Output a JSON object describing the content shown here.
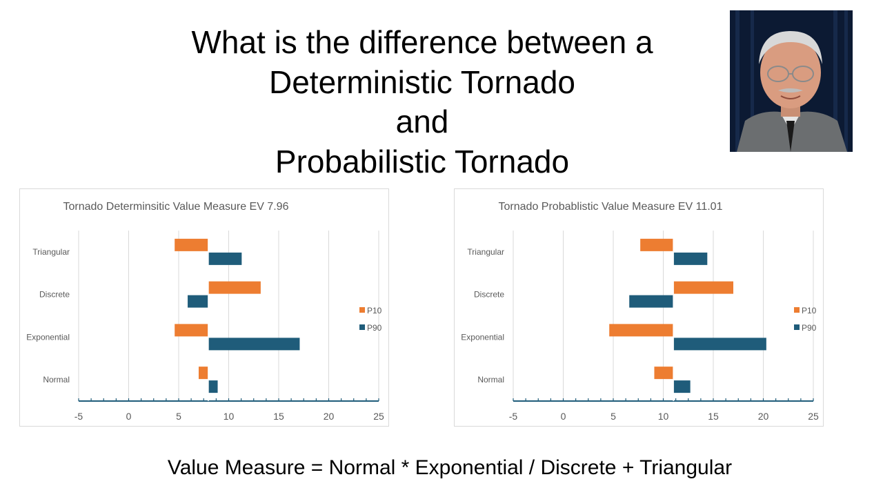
{
  "slide": {
    "title_lines": [
      "What is the difference between a",
      "Deterministic Tornado",
      "and",
      "Probabilistic Tornado"
    ],
    "formula": "Value Measure = Normal * Exponential / Discrete + Triangular"
  },
  "photo": {
    "subject": "portrait-photo",
    "background_color": "#0c1a33"
  },
  "colors": {
    "p10": "#ed7d31",
    "p90": "#1f5c7a",
    "grid": "#d9d9d9",
    "axis": "#1f5c7a",
    "text": "#595959"
  },
  "chart_data": [
    {
      "type": "bar",
      "orientation": "horizontal",
      "title": "Tornado Determinsitic Value Measure EV 7.96",
      "base": 7.96,
      "categories": [
        "Triangular",
        "Discrete",
        "Exponential",
        "Normal"
      ],
      "series": [
        {
          "name": "P10",
          "values": [
            4.6,
            13.2,
            4.6,
            7.0
          ]
        },
        {
          "name": "P90",
          "values": [
            11.3,
            5.9,
            17.1,
            8.9
          ]
        }
      ],
      "xlim": [
        -5,
        25
      ],
      "xticks": [
        "-5",
        "0",
        "5",
        "10",
        "15",
        "20",
        "25"
      ],
      "grid": true,
      "legend": "right"
    },
    {
      "type": "bar",
      "orientation": "horizontal",
      "title": "Tornado Probablistic Value Measure EV 11.01",
      "base": 11.01,
      "categories": [
        "Triangular",
        "Discrete",
        "Exponential",
        "Normal"
      ],
      "series": [
        {
          "name": "P10",
          "values": [
            7.7,
            17.0,
            4.6,
            9.1
          ]
        },
        {
          "name": "P90",
          "values": [
            14.4,
            6.6,
            20.3,
            12.7
          ]
        }
      ],
      "xlim": [
        -5,
        25
      ],
      "xticks": [
        "-5",
        "0",
        "5",
        "10",
        "15",
        "20",
        "25"
      ],
      "grid": true,
      "legend": "right"
    }
  ]
}
